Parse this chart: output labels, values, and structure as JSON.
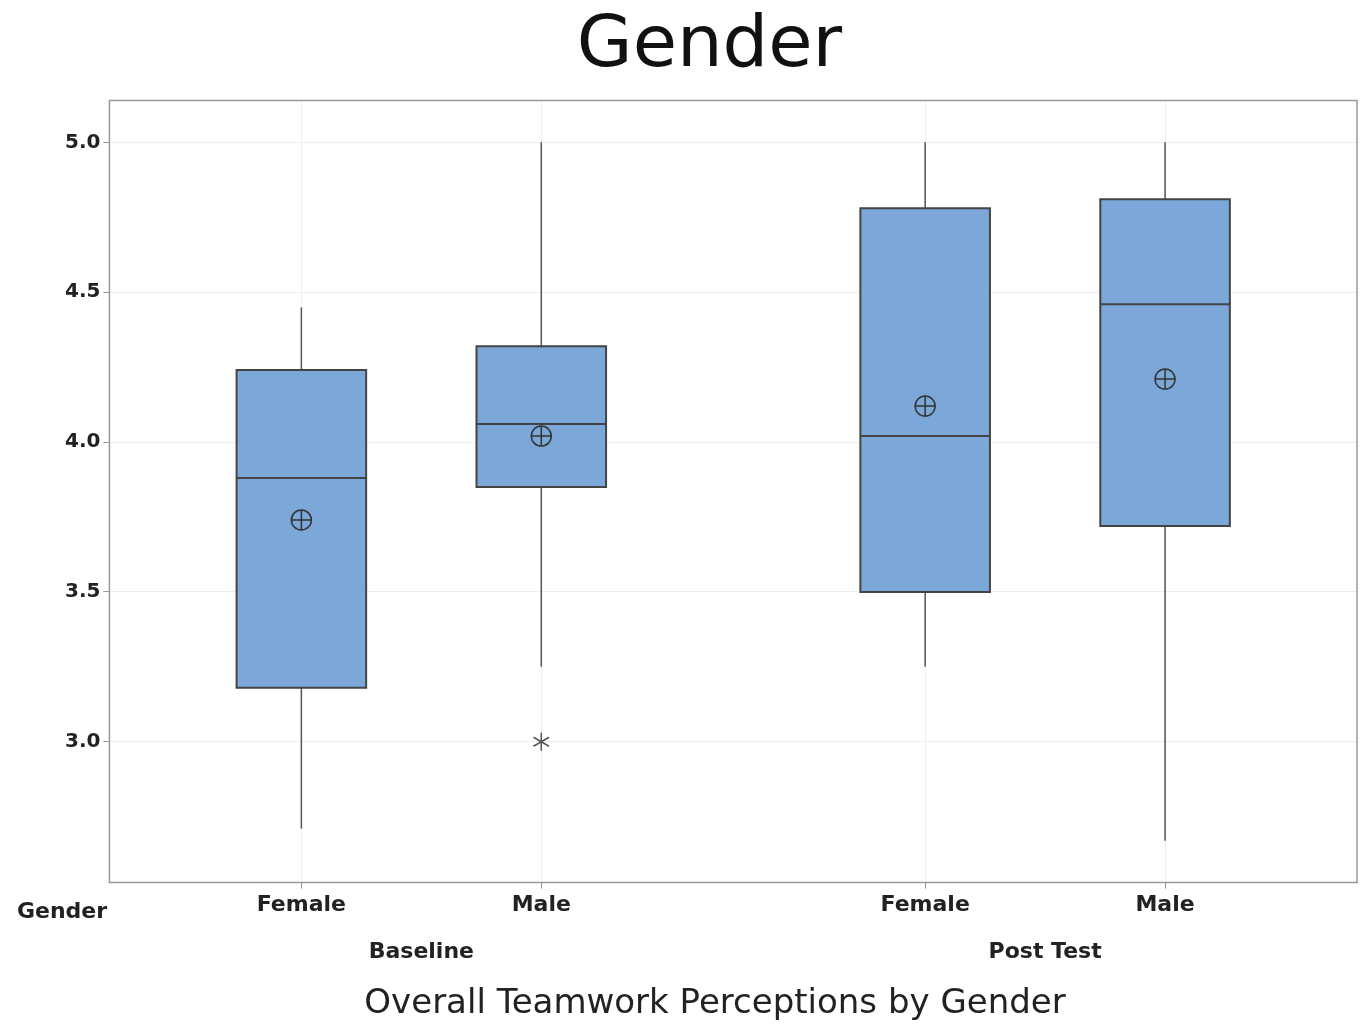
{
  "chart_data": {
    "type": "box",
    "title": "Gender",
    "xlabel": "Gender",
    "categories": [
      "Female",
      "Male",
      "Female",
      "Male"
    ],
    "annotations": [
      "Baseline",
      "Post Test",
      "Overall Teamwork Perceptions by Gender"
    ],
    "series": [
      {
        "color": "#7ba7d9",
        "boxes": [
          {
            "low": 2.71,
            "q1": 3.18,
            "median": 3.88,
            "q3": 4.24,
            "high": 4.45,
            "mean": 3.74
          },
          {
            "low": 3.25,
            "q1": 3.85,
            "median": 4.06,
            "q3": 4.32,
            "high": 5.0,
            "mean": 4.02,
            "outliers": [
              3.0
            ]
          },
          {
            "low": 3.25,
            "q1": 3.5,
            "median": 4.02,
            "q3": 4.78,
            "high": 5.0,
            "mean": 4.12
          },
          {
            "low": 2.67,
            "q1": 3.72,
            "median": 4.46,
            "q3": 4.81,
            "high": 5.0,
            "mean": 4.21
          }
        ]
      }
    ],
    "ylim": [
      2.53,
      5.14
    ],
    "yticks": [
      {
        "value": 3,
        "label": "3.0"
      },
      {
        "value": 3.5,
        "label": "3.5"
      },
      {
        "value": 4,
        "label": "4.0"
      },
      {
        "value": 4.5,
        "label": "4.5"
      },
      {
        "value": 5,
        "label": "5.0"
      }
    ],
    "grid": true
  }
}
